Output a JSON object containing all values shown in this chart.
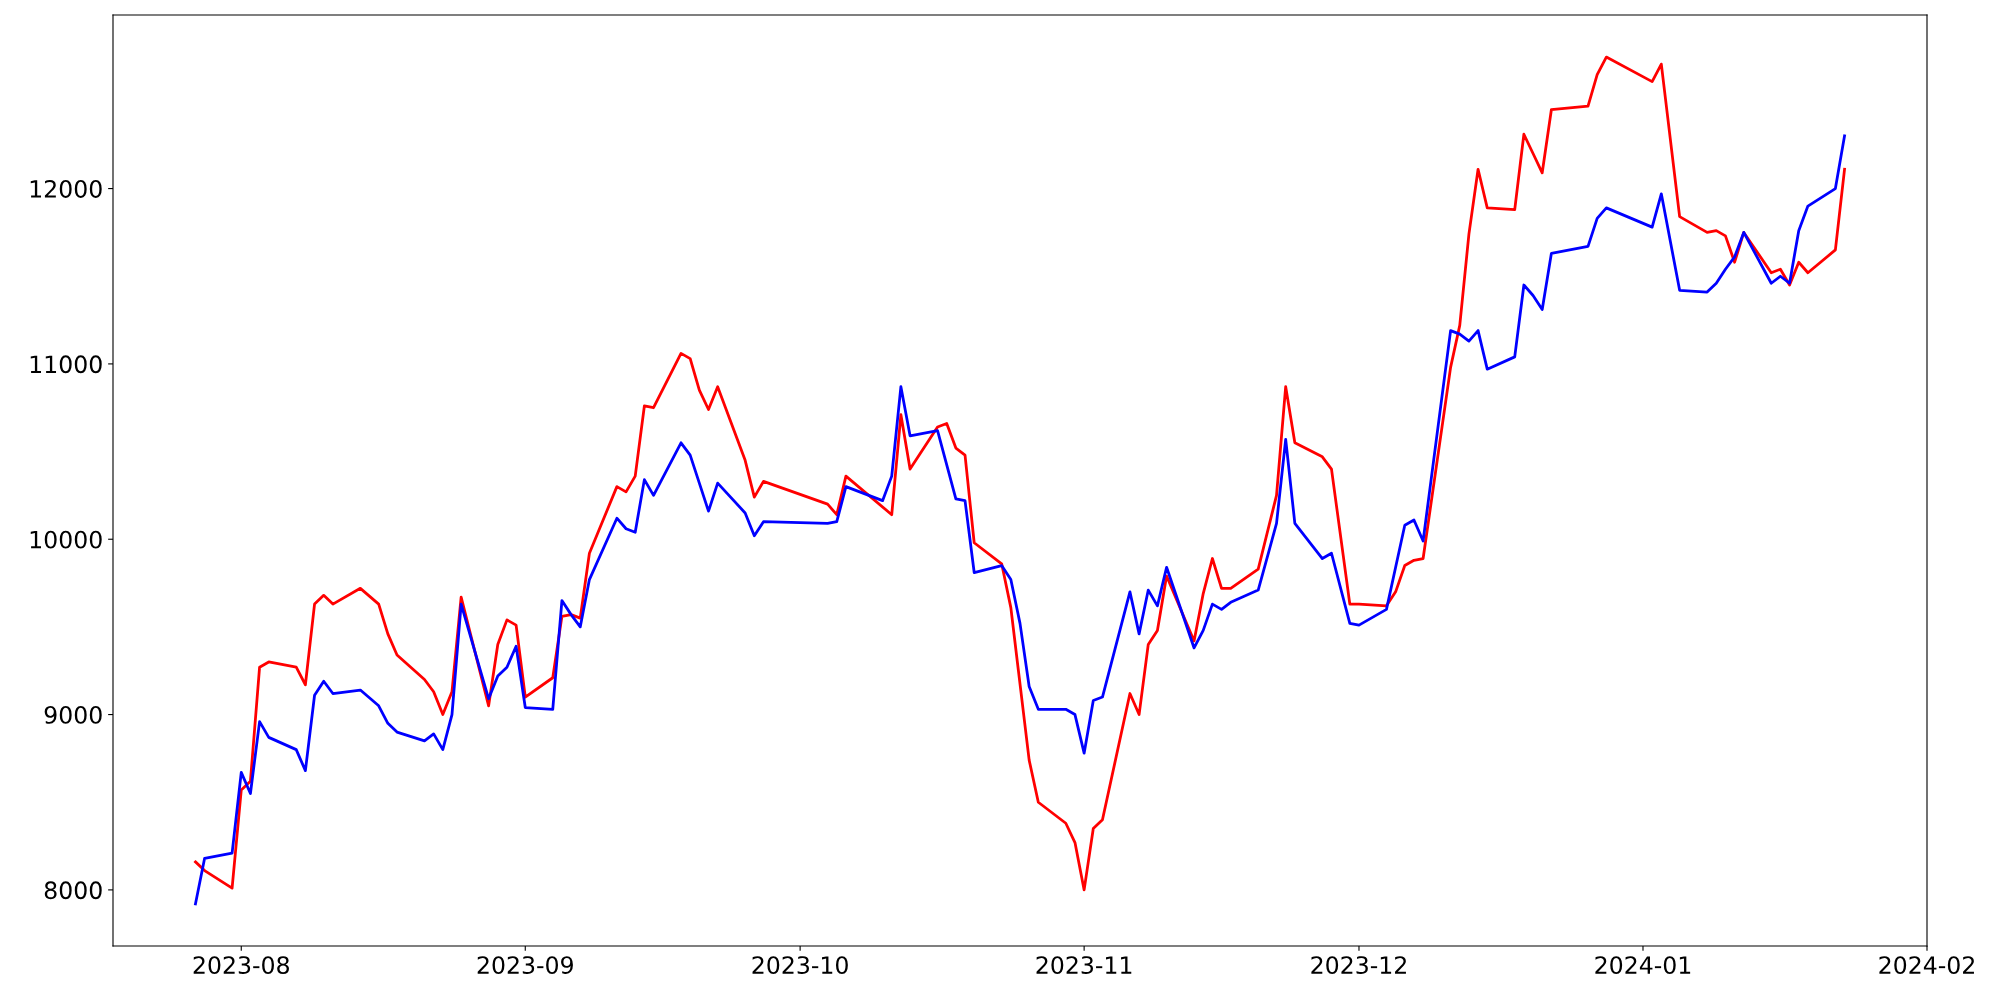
{
  "chart_data": {
    "type": "line",
    "xlim": [
      "2023-07-18",
      "2024-02-01"
    ],
    "ylim": [
      7680,
      12990
    ],
    "xticks": [
      {
        "value": "2023-08-01",
        "label": "2023-08"
      },
      {
        "value": "2023-09-01",
        "label": "2023-09"
      },
      {
        "value": "2023-10-01",
        "label": "2023-10"
      },
      {
        "value": "2023-11-01",
        "label": "2023-11"
      },
      {
        "value": "2023-12-01",
        "label": "2023-12"
      },
      {
        "value": "2024-01-01",
        "label": "2024-01"
      },
      {
        "value": "2024-02-01",
        "label": "2024-02"
      }
    ],
    "yticks": [
      8000,
      9000,
      10000,
      11000,
      12000
    ],
    "grid": false,
    "marker": "none",
    "line_style": "solid",
    "series": [
      {
        "color": "#ff0000",
        "x": [
          "2023-07-27",
          "2023-07-28",
          "2023-07-31",
          "2023-08-01",
          "2023-08-02",
          "2023-08-03",
          "2023-08-04",
          "2023-08-07",
          "2023-08-08",
          "2023-08-09",
          "2023-08-10",
          "2023-08-11",
          "2023-08-14",
          "2023-08-16",
          "2023-08-17",
          "2023-08-18",
          "2023-08-21",
          "2023-08-22",
          "2023-08-23",
          "2023-08-24",
          "2023-08-25",
          "2023-08-28",
          "2023-08-29",
          "2023-08-30",
          "2023-08-31",
          "2023-09-01",
          "2023-09-04",
          "2023-09-05",
          "2023-09-06",
          "2023-09-07",
          "2023-09-08",
          "2023-09-11",
          "2023-09-12",
          "2023-09-13",
          "2023-09-14",
          "2023-09-15",
          "2023-09-18",
          "2023-09-19",
          "2023-09-20",
          "2023-09-21",
          "2023-09-22",
          "2023-09-25",
          "2023-09-26",
          "2023-09-27",
          "2023-10-04",
          "2023-10-05",
          "2023-10-06",
          "2023-10-11",
          "2023-10-12",
          "2023-10-13",
          "2023-10-16",
          "2023-10-17",
          "2023-10-18",
          "2023-10-19",
          "2023-10-20",
          "2023-10-23",
          "2023-10-24",
          "2023-10-26",
          "2023-10-27",
          "2023-10-30",
          "2023-10-31",
          "2023-11-01",
          "2023-11-02",
          "2023-11-03",
          "2023-11-06",
          "2023-11-07",
          "2023-11-08",
          "2023-11-09",
          "2023-11-10",
          "2023-11-13",
          "2023-11-14",
          "2023-11-15",
          "2023-11-16",
          "2023-11-17",
          "2023-11-20",
          "2023-11-22",
          "2023-11-23",
          "2023-11-24",
          "2023-11-27",
          "2023-11-28",
          "2023-11-30",
          "2023-12-01",
          "2023-12-04",
          "2023-12-05",
          "2023-12-06",
          "2023-12-07",
          "2023-12-08",
          "2023-12-11",
          "2023-12-12",
          "2023-12-13",
          "2023-12-14",
          "2023-12-15",
          "2023-12-18",
          "2023-12-19",
          "2023-12-20",
          "2023-12-21",
          "2023-12-22",
          "2023-12-26",
          "2023-12-27",
          "2023-12-28",
          "2024-01-02",
          "2024-01-03",
          "2024-01-05",
          "2024-01-08",
          "2024-01-09",
          "2024-01-10",
          "2024-01-11",
          "2024-01-12",
          "2024-01-15",
          "2024-01-16",
          "2024-01-17",
          "2024-01-18",
          "2024-01-19",
          "2024-01-22",
          "2024-01-23"
        ],
        "values": [
          8160,
          8110,
          8010,
          8570,
          8620,
          9270,
          9300,
          9270,
          9170,
          9630,
          9680,
          9630,
          9720,
          9630,
          9460,
          9340,
          9200,
          9130,
          9000,
          9130,
          9670,
          9050,
          9400,
          9540,
          9510,
          9100,
          9210,
          9560,
          9570,
          9550,
          9920,
          10300,
          10270,
          10360,
          10760,
          10750,
          11060,
          11030,
          10850,
          10740,
          10870,
          10450,
          10240,
          10330,
          10200,
          10140,
          10360,
          10140,
          10710,
          10400,
          10640,
          10660,
          10520,
          10480,
          9980,
          9860,
          9610,
          8740,
          8500,
          8380,
          8270,
          8000,
          8350,
          8400,
          9120,
          9000,
          9400,
          9480,
          9790,
          9420,
          9690,
          9890,
          9720,
          9720,
          9830,
          10250,
          10870,
          10550,
          10470,
          10400,
          9630,
          9630,
          9620,
          9700,
          9850,
          9880,
          9890,
          10980,
          11220,
          11740,
          12110,
          11890,
          11880,
          12310,
          12200,
          12090,
          12450,
          12470,
          12650,
          12750,
          12610,
          12710,
          11840,
          11750,
          11760,
          11730,
          11580,
          11750,
          11520,
          11540,
          11450,
          11580,
          11520,
          11650,
          12110
        ]
      },
      {
        "color": "#0000ff",
        "x": [
          "2023-07-27",
          "2023-07-28",
          "2023-07-31",
          "2023-08-01",
          "2023-08-02",
          "2023-08-03",
          "2023-08-04",
          "2023-08-07",
          "2023-08-08",
          "2023-08-09",
          "2023-08-10",
          "2023-08-11",
          "2023-08-14",
          "2023-08-16",
          "2023-08-17",
          "2023-08-18",
          "2023-08-21",
          "2023-08-22",
          "2023-08-23",
          "2023-08-24",
          "2023-08-25",
          "2023-08-28",
          "2023-08-29",
          "2023-08-30",
          "2023-08-31",
          "2023-09-01",
          "2023-09-04",
          "2023-09-05",
          "2023-09-06",
          "2023-09-07",
          "2023-09-08",
          "2023-09-11",
          "2023-09-12",
          "2023-09-13",
          "2023-09-14",
          "2023-09-15",
          "2023-09-18",
          "2023-09-19",
          "2023-09-20",
          "2023-09-21",
          "2023-09-22",
          "2023-09-25",
          "2023-09-26",
          "2023-09-27",
          "2023-10-04",
          "2023-10-05",
          "2023-10-06",
          "2023-10-10",
          "2023-10-11",
          "2023-10-12",
          "2023-10-13",
          "2023-10-16",
          "2023-10-18",
          "2023-10-19",
          "2023-10-20",
          "2023-10-23",
          "2023-10-24",
          "2023-10-25",
          "2023-10-26",
          "2023-10-27",
          "2023-10-30",
          "2023-10-31",
          "2023-11-01",
          "2023-11-02",
          "2023-11-03",
          "2023-11-06",
          "2023-11-07",
          "2023-11-08",
          "2023-11-09",
          "2023-11-10",
          "2023-11-13",
          "2023-11-14",
          "2023-11-15",
          "2023-11-16",
          "2023-11-17",
          "2023-11-20",
          "2023-11-22",
          "2023-11-23",
          "2023-11-24",
          "2023-11-27",
          "2023-11-28",
          "2023-11-30",
          "2023-12-01",
          "2023-12-04",
          "2023-12-05",
          "2023-12-06",
          "2023-12-07",
          "2023-12-08",
          "2023-12-11",
          "2023-12-12",
          "2023-12-13",
          "2023-12-14",
          "2023-12-15",
          "2023-12-18",
          "2023-12-19",
          "2023-12-20",
          "2023-12-21",
          "2023-12-22",
          "2023-12-26",
          "2023-12-27",
          "2023-12-28",
          "2024-01-02",
          "2024-01-03",
          "2024-01-05",
          "2024-01-08",
          "2024-01-09",
          "2024-01-10",
          "2024-01-11",
          "2024-01-12",
          "2024-01-15",
          "2024-01-16",
          "2024-01-17",
          "2024-01-18",
          "2024-01-19",
          "2024-01-22",
          "2024-01-23"
        ],
        "values": [
          7920,
          8180,
          8210,
          8670,
          8550,
          8960,
          8870,
          8800,
          8680,
          9110,
          9190,
          9120,
          9140,
          9050,
          8950,
          8900,
          8850,
          8890,
          8800,
          9000,
          9630,
          9090,
          9220,
          9270,
          9390,
          9040,
          9030,
          9650,
          9570,
          9500,
          9770,
          10120,
          10060,
          10040,
          10340,
          10250,
          10550,
          10480,
          10320,
          10160,
          10320,
          10150,
          10020,
          10100,
          10090,
          10100,
          10300,
          10220,
          10360,
          10870,
          10590,
          10620,
          10230,
          10220,
          9810,
          9850,
          9770,
          9520,
          9160,
          9030,
          9030,
          9000,
          8780,
          9080,
          9100,
          9700,
          9460,
          9710,
          9620,
          9840,
          9380,
          9480,
          9630,
          9600,
          9640,
          9710,
          10090,
          10570,
          10090,
          9890,
          9920,
          9520,
          9510,
          9600,
          9840,
          10080,
          10110,
          9990,
          11190,
          11170,
          11130,
          11190,
          10970,
          11040,
          11450,
          11390,
          11310,
          11630,
          11670,
          11830,
          11890,
          11780,
          11970,
          11420,
          11410,
          11460,
          11540,
          11610,
          11750,
          11460,
          11500,
          11460,
          11760,
          11900,
          12000,
          12300
        ]
      }
    ]
  }
}
